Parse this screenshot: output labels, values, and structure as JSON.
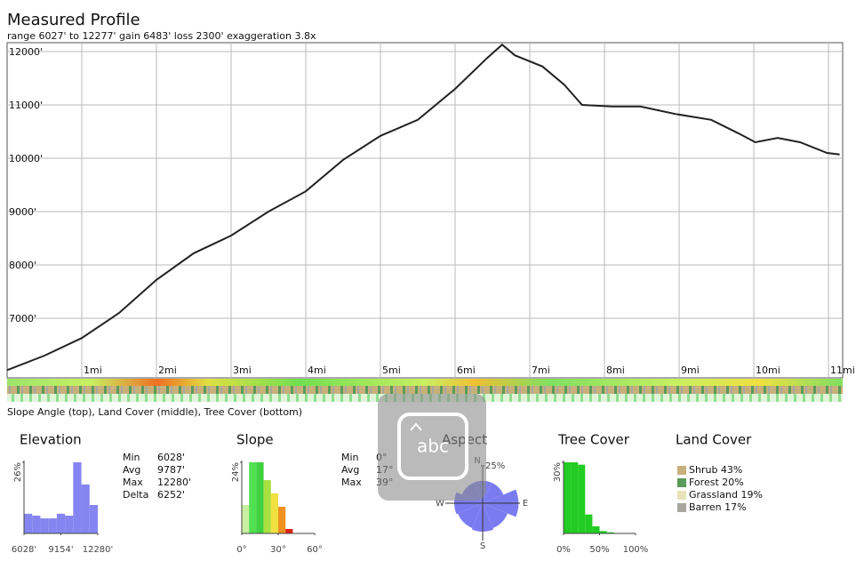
{
  "chart_data": [
    {
      "type": "line",
      "title": "Measured Profile",
      "subtitle": "range 6027' to 12277'  gain 6483'  loss 2300'  exaggeration 3.8x",
      "caption": "Slope Angle (top), Land Cover (middle), Tree Cover (bottom)",
      "x": [
        0,
        0.5,
        1.0,
        1.5,
        2.0,
        2.5,
        3.0,
        3.5,
        4.0,
        4.5,
        5.0,
        5.5,
        6.0,
        6.43,
        6.63,
        6.8,
        7.17,
        7.46,
        7.7,
        8.1,
        8.48,
        8.95,
        9.43,
        9.79,
        10.02,
        10.32,
        10.62,
        10.98,
        11.15
      ],
      "values": [
        6028,
        6300,
        6630,
        7100,
        7720,
        8220,
        8550,
        9000,
        9380,
        9970,
        10420,
        10720,
        11300,
        11880,
        12130,
        11930,
        11720,
        11380,
        11000,
        10970,
        10970,
        10830,
        10720,
        10470,
        10300,
        10380,
        10300,
        10100,
        10070
      ],
      "color": "#222222",
      "xlim": [
        0,
        11.19
      ],
      "ylim": [
        5883,
        12167
      ],
      "xticks": [
        {
          "value": 1,
          "label": "1mi"
        },
        {
          "value": 2,
          "label": "2mi"
        },
        {
          "value": 3,
          "label": "3mi"
        },
        {
          "value": 4,
          "label": "4mi"
        },
        {
          "value": 5,
          "label": "5mi"
        },
        {
          "value": 6,
          "label": "6mi"
        },
        {
          "value": 7,
          "label": "7mi"
        },
        {
          "value": 8,
          "label": "8mi"
        },
        {
          "value": 9,
          "label": "9mi"
        },
        {
          "value": 10,
          "label": "10mi"
        },
        {
          "value": 11,
          "label": "11mi"
        }
      ],
      "yticks": [
        {
          "value": 7000,
          "label": "7000'"
        },
        {
          "value": 8000,
          "label": "8000'"
        },
        {
          "value": 9000,
          "label": "9000'"
        },
        {
          "value": 10000,
          "label": "10000'"
        },
        {
          "value": 11000,
          "label": "11000'"
        },
        {
          "value": 12000,
          "label": "12000'"
        }
      ],
      "grid": true
    },
    {
      "type": "histogram",
      "title": "Elevation",
      "bins": [
        6028,
        6723,
        7417,
        8112,
        8807,
        9501,
        10196,
        10891,
        11585,
        12280
      ],
      "values": [
        7.2,
        6.5,
        5.5,
        5.5,
        7.2,
        6.5,
        26,
        17.9,
        10.4
      ],
      "color": "#8585f2",
      "xlim": [
        6028,
        12280
      ],
      "ylim": [
        0,
        26
      ],
      "xticks": [
        {
          "value": 6028,
          "label": "6028'"
        },
        {
          "value": 9154,
          "label": "9154'"
        },
        {
          "value": 12280,
          "label": "12280'"
        }
      ],
      "yticks": [
        {
          "value": 26,
          "label": "26%"
        }
      ],
      "stats": [
        [
          "Min",
          "6028'"
        ],
        [
          "Avg",
          "9787'"
        ],
        [
          "Max",
          "12280'"
        ],
        [
          "Delta",
          "6252'"
        ]
      ]
    },
    {
      "type": "histogram",
      "title": "Slope",
      "bins": [
        0,
        6,
        12,
        18,
        24,
        30,
        36,
        42
      ],
      "values": [
        9.6,
        24,
        24,
        18,
        13.5,
        9,
        1.5
      ],
      "colors": [
        "#c8f0a0",
        "#50e050",
        "#40d040",
        "#a8e040",
        "#f0e040",
        "#f09020",
        "#e02010"
      ],
      "xlim": [
        0,
        60
      ],
      "ylim": [
        0,
        24
      ],
      "xticks": [
        {
          "value": 0,
          "label": "0°"
        },
        {
          "value": 30,
          "label": "30°"
        },
        {
          "value": 60,
          "label": "60°"
        }
      ],
      "yticks": [
        {
          "value": 24,
          "label": "24%"
        }
      ],
      "stats": [
        [
          "Min",
          "0°"
        ],
        [
          "Avg",
          "17°"
        ],
        [
          "Max",
          "39°"
        ]
      ]
    },
    {
      "type": "rose",
      "title": "Aspect",
      "categories": [
        "N",
        null,
        "E",
        null,
        "S",
        null,
        "W",
        null
      ],
      "values": [
        15,
        15,
        24,
        18,
        19,
        18,
        19,
        15
      ],
      "color": "#7b7bf0",
      "rlim": [
        0,
        25
      ],
      "rticks": [
        {
          "value": 25,
          "label": "25%"
        }
      ]
    },
    {
      "type": "histogram",
      "title": "Tree Cover",
      "bins": [
        0,
        10,
        20,
        30,
        40,
        50,
        60,
        70,
        80,
        90,
        100
      ],
      "values": [
        30,
        30,
        29,
        8,
        3,
        1,
        0.5,
        0,
        0,
        0
      ],
      "color": "#22cc22",
      "xlim": [
        0,
        100
      ],
      "ylim": [
        0,
        30
      ],
      "xticks": [
        {
          "value": 0,
          "label": "0%"
        },
        {
          "value": 50,
          "label": "50%"
        },
        {
          "value": 100,
          "label": "100%"
        }
      ],
      "yticks": [
        {
          "value": 30,
          "label": "30%"
        }
      ]
    },
    {
      "type": "legend",
      "title": "Land Cover",
      "entries": [
        {
          "label": "Shrub 43%",
          "color": "#c8b07a"
        },
        {
          "label": "Forest 20%",
          "color": "#5a9a5a"
        },
        {
          "label": "Grassland 19%",
          "color": "#e6e4b8"
        },
        {
          "label": "Barren 17%",
          "color": "#a8a8a0"
        }
      ]
    }
  ],
  "overlay": {
    "icon_text": "abc"
  }
}
